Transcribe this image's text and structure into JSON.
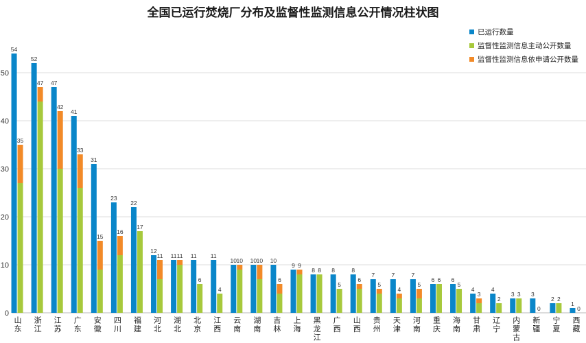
{
  "chart_data": {
    "type": "bar",
    "title": "全国已运行焚烧厂分布及监督性监测信息公开情况柱状图",
    "categories": [
      "山东",
      "浙江",
      "江苏",
      "广东",
      "安徽",
      "四川",
      "福建",
      "河北",
      "湖北",
      "北京",
      "江西",
      "云南",
      "湖南",
      "吉林",
      "上海",
      "黑龙江",
      "广西",
      "山西",
      "贵州",
      "天津",
      "河南",
      "重庆",
      "海南",
      "甘肃",
      "辽宁",
      "内蒙古",
      "新疆",
      "宁夏",
      "西藏"
    ],
    "series": [
      {
        "name": "已运行数量",
        "color": "#0a86c9",
        "values": [
          54,
          52,
          47,
          41,
          31,
          23,
          22,
          12,
          11,
          11,
          11,
          10,
          10,
          10,
          9,
          8,
          8,
          8,
          7,
          7,
          7,
          6,
          6,
          4,
          4,
          3,
          3,
          2,
          1
        ]
      },
      {
        "totals": [
          35,
          47,
          42,
          33,
          15,
          16,
          17,
          11,
          11,
          6,
          4,
          10,
          10,
          6,
          9,
          8,
          5,
          6,
          5,
          4,
          5,
          6,
          5,
          3,
          2,
          3,
          0,
          2,
          0
        ],
        "stack": [
          {
            "name": "监督性监测信息主动公开数量",
            "color": "#a7c93c",
            "values": [
              27,
              44,
              30,
              26,
              9,
              12,
              17,
              7,
              10,
              6,
              4,
              9,
              7,
              4,
              8,
              8,
              5,
              5,
              4,
              3,
              3,
              6,
              5,
              2,
              2,
              3,
              0,
              2,
              0
            ]
          },
          {
            "name": "监督性监测信息依申请公开数量",
            "color": "#f28a28",
            "values": [
              8,
              3,
              12,
              7,
              6,
              4,
              0,
              4,
              1,
              0,
              0,
              1,
              3,
              2,
              1,
              0,
              0,
              1,
              1,
              1,
              2,
              0,
              0,
              1,
              0,
              0,
              0,
              0,
              0
            ]
          }
        ]
      }
    ],
    "yticks": [
      0,
      10,
      20,
      30,
      40,
      50
    ],
    "ylim": [
      0,
      55
    ],
    "grid": true,
    "legend": "top-right"
  }
}
